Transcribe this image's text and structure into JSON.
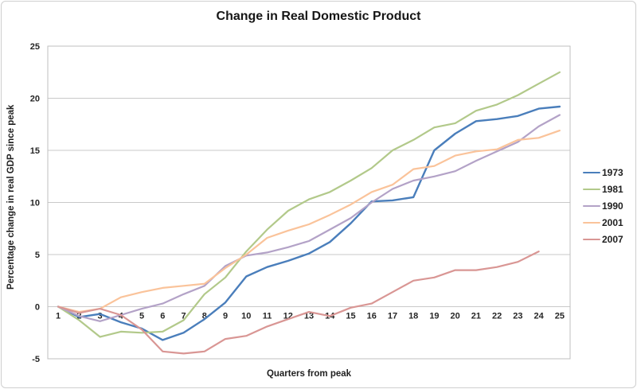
{
  "chart_data": {
    "type": "line",
    "title": "Change in Real Domestic Product",
    "xlabel": "Quarters from peak",
    "ylabel": "Percentage change in real GDP since peak",
    "x": [
      1,
      2,
      3,
      4,
      5,
      6,
      7,
      8,
      9,
      10,
      11,
      12,
      13,
      14,
      15,
      16,
      17,
      18,
      19,
      20,
      21,
      22,
      23,
      24,
      25
    ],
    "ylim": [
      -5,
      25
    ],
    "ytick_step": 5,
    "yticks": [
      25,
      20,
      15,
      10,
      5,
      0,
      -5
    ],
    "grid": true,
    "legend_position": "right",
    "x_labels_at_zero_line": true,
    "gridline_color": "#c9c9c9",
    "border_color": "#bfbfbf",
    "text_color": "#262626",
    "series": [
      {
        "name": "1973",
        "color": "#4a7ebb",
        "width": 2.4,
        "values": [
          0,
          -1.0,
          -0.7,
          -1.5,
          -2.1,
          -3.2,
          -2.5,
          -1.2,
          0.4,
          2.9,
          3.8,
          4.4,
          5.1,
          6.2,
          8.0,
          10.1,
          10.2,
          10.5,
          15.0,
          16.6,
          17.8,
          18.0,
          18.3,
          19.0,
          19.2
        ]
      },
      {
        "name": "1981",
        "color": "#b2c98a",
        "width": 2.2,
        "values": [
          0,
          -1.3,
          -2.9,
          -2.4,
          -2.5,
          -2.4,
          -1.3,
          1.2,
          2.8,
          5.3,
          7.4,
          9.2,
          10.3,
          11.0,
          12.1,
          13.3,
          15.0,
          16.0,
          17.2,
          17.6,
          18.8,
          19.4,
          20.3,
          21.4,
          22.5
        ]
      },
      {
        "name": "1990",
        "color": "#b3a2c7",
        "width": 2.2,
        "values": [
          0,
          -0.9,
          -1.4,
          -0.8,
          -0.2,
          0.3,
          1.2,
          2.0,
          3.9,
          4.9,
          5.2,
          5.7,
          6.3,
          7.4,
          8.5,
          10.0,
          11.3,
          12.1,
          12.5,
          13.0,
          14.0,
          14.9,
          15.8,
          17.3,
          18.4
        ]
      },
      {
        "name": "2001",
        "color": "#fac39a",
        "width": 2.2,
        "values": [
          0,
          -0.5,
          -0.2,
          0.9,
          1.4,
          1.8,
          2.0,
          2.2,
          3.7,
          5.0,
          6.6,
          7.3,
          7.9,
          8.8,
          9.8,
          11.0,
          11.7,
          13.2,
          13.5,
          14.5,
          14.9,
          15.1,
          16.0,
          16.2,
          16.9
        ]
      },
      {
        "name": "2007",
        "color": "#d99694",
        "width": 2.2,
        "values": [
          0,
          -0.6,
          -0.2,
          -0.8,
          -2.2,
          -4.3,
          -4.5,
          -4.3,
          -3.1,
          -2.8,
          -1.9,
          -1.2,
          -0.5,
          -0.9,
          -0.1,
          0.3,
          1.4,
          2.5,
          2.8,
          3.5,
          3.5,
          3.8,
          4.3,
          5.3
        ]
      }
    ]
  }
}
